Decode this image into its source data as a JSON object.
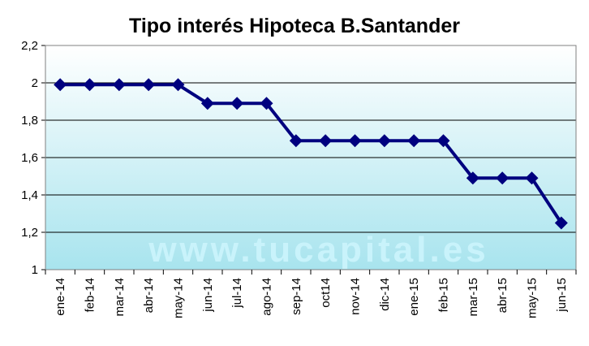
{
  "chart_data": {
    "type": "line",
    "title": "Tipo interés Hipoteca B.Santander",
    "watermark": "www.tucapital.es",
    "categories": [
      "ene-14",
      "feb-14",
      "mar-14",
      "abr-14",
      "may-14",
      "jun-14",
      "jul-14",
      "ago-14",
      "sep-14",
      "oct14",
      "nov-14",
      "dic-14",
      "ene-15",
      "feb-15",
      "mar-15",
      "abr-15",
      "may-15",
      "jun-15"
    ],
    "series": [
      {
        "values": [
          1.99,
          1.99,
          1.99,
          1.99,
          1.99,
          1.89,
          1.89,
          1.89,
          1.69,
          1.69,
          1.69,
          1.69,
          1.69,
          1.69,
          1.49,
          1.49,
          1.49,
          1.25
        ]
      }
    ],
    "y_ticks": [
      "1",
      "1,2",
      "1,4",
      "1,6",
      "1,8",
      "2",
      "2,2"
    ],
    "ylim": [
      1,
      2.2
    ],
    "grid": true,
    "legend": "none",
    "colors": {
      "line": "#00007f",
      "marker": "#00007f",
      "plot_bg_top": "#ffffff",
      "plot_bg_bottom": "#a8e4ee",
      "grid": "#000000",
      "watermark": "#c9f3fb"
    }
  }
}
